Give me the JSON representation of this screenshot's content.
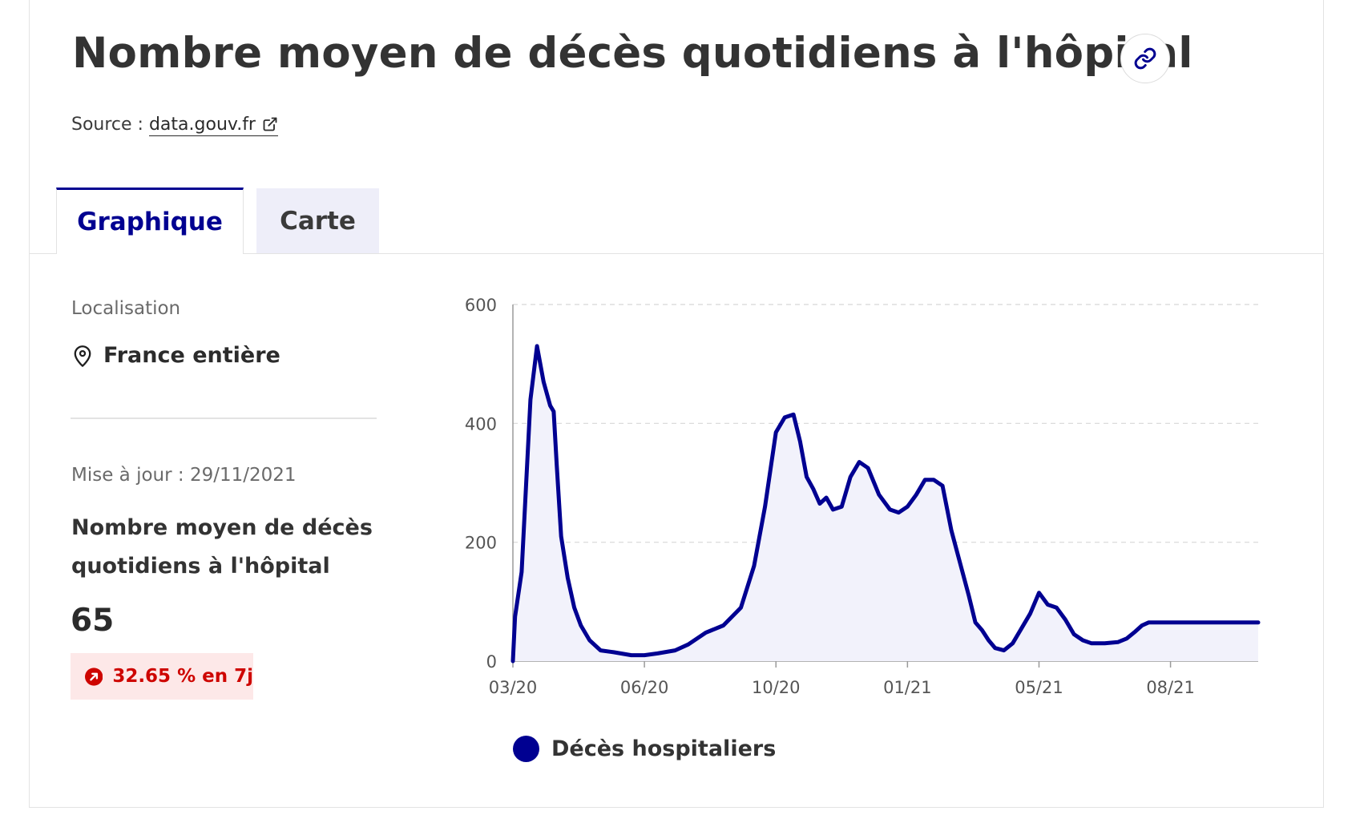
{
  "page": {
    "title": "Nombre moyen de décès quotidiens à l'hôpital",
    "source_prefix": "Source :",
    "source_link": "data.gouv.fr"
  },
  "tabs": [
    {
      "label": "Graphique",
      "active": true
    },
    {
      "label": "Carte",
      "active": false
    }
  ],
  "sidebar": {
    "location_label": "Localisation",
    "location_value": "France entière",
    "updated": "Mise à jour : 29/11/2021",
    "indicator_title": "Nombre moyen de décès quotidiens à l'hôpital",
    "indicator_value": "65",
    "trend": "32.65 % en 7j",
    "trend_direction": "up"
  },
  "colors": {
    "accent": "#000091",
    "area_fill": "#f2f2fb",
    "trend_text": "#ce0500",
    "trend_bg": "#fde8e8"
  },
  "icons": {
    "title_action": "link-icon",
    "source": "external-link-icon",
    "location": "map-pin-icon",
    "trend": "arrow-up-right-icon"
  },
  "chart_data": {
    "type": "area",
    "title": "",
    "xlabel": "",
    "ylabel": "",
    "ylim": [
      0,
      600
    ],
    "yticks": [
      0,
      200,
      400,
      600
    ],
    "x_tick_labels": [
      "03/20",
      "06/20",
      "10/20",
      "01/21",
      "05/21",
      "08/21"
    ],
    "x_tick_index": [
      0,
      3,
      6,
      9,
      12,
      15
    ],
    "grid": "horizontal dashed",
    "legend_position": "bottom",
    "series": [
      {
        "name": "Décès hospitaliers",
        "color": "#000091",
        "x": [
          0,
          0.05,
          0.2,
          0.4,
          0.55,
          0.7,
          0.85,
          0.93,
          1.0,
          1.1,
          1.25,
          1.4,
          1.55,
          1.75,
          2.0,
          2.3,
          2.7,
          3.0,
          3.3,
          3.7,
          4.0,
          4.4,
          4.8,
          5.2,
          5.5,
          5.75,
          6.0,
          6.2,
          6.4,
          6.55,
          6.7,
          6.85,
          7.0,
          7.15,
          7.3,
          7.5,
          7.7,
          7.9,
          8.1,
          8.35,
          8.6,
          8.8,
          9.0,
          9.2,
          9.4,
          9.6,
          9.8,
          10.0,
          10.2,
          10.4,
          10.55,
          10.7,
          10.85,
          11.0,
          11.2,
          11.4,
          11.6,
          11.8,
          12.0,
          12.2,
          12.4,
          12.6,
          12.8,
          13.0,
          13.2,
          13.5,
          13.8,
          14.0,
          14.2,
          14.35,
          14.5,
          14.7,
          14.9,
          15.1,
          15.3,
          15.5,
          15.7,
          15.9,
          16.1,
          16.3,
          16.5,
          16.7,
          16.9,
          17.0
        ],
        "values": [
          0,
          75,
          150,
          440,
          530,
          470,
          430,
          420,
          330,
          210,
          140,
          90,
          60,
          35,
          18,
          15,
          10,
          10,
          13,
          18,
          28,
          48,
          60,
          90,
          160,
          260,
          385,
          410,
          415,
          370,
          310,
          290,
          265,
          275,
          255,
          260,
          310,
          335,
          325,
          280,
          255,
          250,
          260,
          280,
          305,
          305,
          295,
          220,
          165,
          110,
          65,
          52,
          35,
          22,
          18,
          30,
          55,
          80,
          115,
          95,
          90,
          70,
          45,
          35,
          30,
          30,
          32,
          38,
          50,
          60,
          65,
          65,
          65,
          65,
          65,
          65,
          65,
          65,
          65,
          65,
          65,
          65,
          65,
          65
        ]
      }
    ]
  }
}
